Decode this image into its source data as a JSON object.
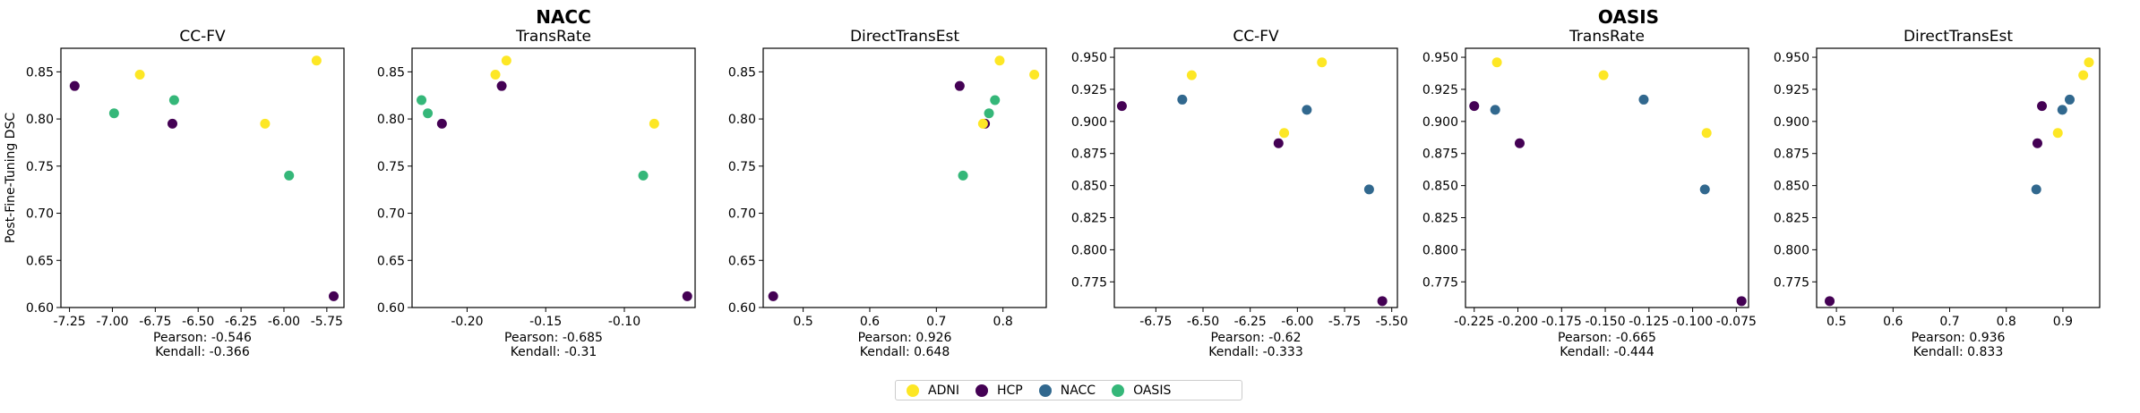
{
  "group_titles": [
    {
      "text": "NACC"
    },
    {
      "text": "OASIS"
    }
  ],
  "colors": {
    "ADNI": "#fde725",
    "HCP": "#440154",
    "NACC": "#31688e",
    "OASIS": "#35b779"
  },
  "legend": {
    "placement": "bottom-center",
    "items": [
      {
        "label": "ADNI",
        "color": "#fde725"
      },
      {
        "label": "HCP",
        "color": "#440154"
      },
      {
        "label": "NACC",
        "color": "#31688e"
      },
      {
        "label": "OASIS",
        "color": "#35b779"
      }
    ]
  },
  "chart_data": [
    {
      "type": "scatter",
      "title": "CC-FV",
      "ylabel": "Post-Fine-Tuning DSC",
      "xlim": [
        -7.3,
        -5.65
      ],
      "ylim": [
        0.6,
        0.875
      ],
      "grid": false,
      "xticks": [
        -7.25,
        -7.0,
        -6.75,
        -6.5,
        -6.25,
        -6.0,
        -5.75
      ],
      "xtick_labels": [
        "-7.25",
        "-7.00",
        "-6.75",
        "-6.50",
        "-6.25",
        "-6.00",
        "-5.75"
      ],
      "yticks": [
        0.6,
        0.65,
        0.7,
        0.75,
        0.8,
        0.85
      ],
      "ytick_labels": [
        "0.60",
        "0.65",
        "0.70",
        "0.75",
        "0.80",
        "0.85"
      ],
      "points": [
        {
          "series": "HCP",
          "x": -7.22,
          "y": 0.835
        },
        {
          "series": "ADNI",
          "x": -6.84,
          "y": 0.847
        },
        {
          "series": "OASIS",
          "x": -6.99,
          "y": 0.806
        },
        {
          "series": "OASIS",
          "x": -6.64,
          "y": 0.82
        },
        {
          "series": "HCP",
          "x": -6.65,
          "y": 0.795
        },
        {
          "series": "ADNI",
          "x": -6.11,
          "y": 0.795
        },
        {
          "series": "OASIS",
          "x": -5.97,
          "y": 0.74
        },
        {
          "series": "ADNI",
          "x": -5.81,
          "y": 0.862
        },
        {
          "series": "HCP",
          "x": -5.71,
          "y": 0.612
        }
      ],
      "annotations": [
        "Pearson: -0.546",
        "Kendall: -0.366"
      ]
    },
    {
      "type": "scatter",
      "title": "TransRate",
      "xlim": [
        -0.235,
        -0.055
      ],
      "ylim": [
        0.6,
        0.875
      ],
      "grid": false,
      "xticks": [
        -0.2,
        -0.15,
        -0.1
      ],
      "xtick_labels": [
        "-0.20",
        "-0.15",
        "-0.10"
      ],
      "yticks": [
        0.6,
        0.65,
        0.7,
        0.75,
        0.8,
        0.85
      ],
      "ytick_labels": [
        "0.60",
        "0.65",
        "0.70",
        "0.75",
        "0.80",
        "0.85"
      ],
      "points": [
        {
          "series": "OASIS",
          "x": -0.229,
          "y": 0.82
        },
        {
          "series": "OASIS",
          "x": -0.225,
          "y": 0.806
        },
        {
          "series": "HCP",
          "x": -0.216,
          "y": 0.795
        },
        {
          "series": "ADNI",
          "x": -0.182,
          "y": 0.847
        },
        {
          "series": "HCP",
          "x": -0.178,
          "y": 0.835
        },
        {
          "series": "ADNI",
          "x": -0.175,
          "y": 0.862
        },
        {
          "series": "OASIS",
          "x": -0.088,
          "y": 0.74
        },
        {
          "series": "ADNI",
          "x": -0.081,
          "y": 0.795
        },
        {
          "series": "HCP",
          "x": -0.06,
          "y": 0.612
        }
      ],
      "annotations": [
        "Pearson: -0.685",
        "Kendall: -0.31"
      ]
    },
    {
      "type": "scatter",
      "title": "DirectTransEst",
      "xlim": [
        0.44,
        0.865
      ],
      "ylim": [
        0.6,
        0.875
      ],
      "grid": false,
      "xticks": [
        0.5,
        0.6,
        0.7,
        0.8
      ],
      "xtick_labels": [
        "0.5",
        "0.6",
        "0.7",
        "0.8"
      ],
      "yticks": [
        0.6,
        0.65,
        0.7,
        0.75,
        0.8,
        0.85
      ],
      "ytick_labels": [
        "0.60",
        "0.65",
        "0.70",
        "0.75",
        "0.80",
        "0.85"
      ],
      "points": [
        {
          "series": "HCP",
          "x": 0.455,
          "y": 0.612
        },
        {
          "series": "OASIS",
          "x": 0.74,
          "y": 0.74
        },
        {
          "series": "HCP",
          "x": 0.735,
          "y": 0.835
        },
        {
          "series": "HCP",
          "x": 0.773,
          "y": 0.795
        },
        {
          "series": "ADNI",
          "x": 0.77,
          "y": 0.795
        },
        {
          "series": "OASIS",
          "x": 0.779,
          "y": 0.806
        },
        {
          "series": "OASIS",
          "x": 0.788,
          "y": 0.82
        },
        {
          "series": "ADNI",
          "x": 0.795,
          "y": 0.862
        },
        {
          "series": "ADNI",
          "x": 0.847,
          "y": 0.847
        }
      ],
      "annotations": [
        "Pearson: 0.926",
        "Kendall: 0.648"
      ]
    },
    {
      "type": "scatter",
      "title": "CC-FV",
      "xlim": [
        -6.97,
        -5.47
      ],
      "ylim": [
        0.755,
        0.957
      ],
      "grid": false,
      "xticks": [
        -6.75,
        -6.5,
        -6.25,
        -6.0,
        -5.75,
        -5.5
      ],
      "xtick_labels": [
        "-6.75",
        "-6.50",
        "-6.25",
        "-6.00",
        "-5.75",
        "-5.50"
      ],
      "yticks": [
        0.775,
        0.8,
        0.825,
        0.85,
        0.875,
        0.9,
        0.925,
        0.95
      ],
      "ytick_labels": [
        "0.775",
        "0.800",
        "0.825",
        "0.850",
        "0.875",
        "0.900",
        "0.925",
        "0.950"
      ],
      "points": [
        {
          "series": "HCP",
          "x": -6.93,
          "y": 0.912
        },
        {
          "series": "NACC",
          "x": -6.61,
          "y": 0.917
        },
        {
          "series": "ADNI",
          "x": -6.56,
          "y": 0.936
        },
        {
          "series": "HCP",
          "x": -6.1,
          "y": 0.883
        },
        {
          "series": "ADNI",
          "x": -6.07,
          "y": 0.891
        },
        {
          "series": "NACC",
          "x": -5.95,
          "y": 0.909
        },
        {
          "series": "ADNI",
          "x": -5.87,
          "y": 0.946
        },
        {
          "series": "NACC",
          "x": -5.62,
          "y": 0.847
        },
        {
          "series": "HCP",
          "x": -5.55,
          "y": 0.76
        }
      ],
      "annotations": [
        "Pearson: -0.62",
        "Kendall: -0.333"
      ]
    },
    {
      "type": "scatter",
      "title": "TransRate",
      "xlim": [
        -0.23,
        -0.068
      ],
      "ylim": [
        0.755,
        0.957
      ],
      "grid": false,
      "xticks": [
        -0.225,
        -0.2,
        -0.175,
        -0.15,
        -0.125,
        -0.1,
        -0.075
      ],
      "xtick_labels": [
        "-0.225",
        "-0.200",
        "-0.175",
        "-0.150",
        "-0.125",
        "-0.100",
        "-0.075"
      ],
      "yticks": [
        0.775,
        0.8,
        0.825,
        0.85,
        0.875,
        0.9,
        0.925,
        0.95
      ],
      "ytick_labels": [
        "0.775",
        "0.800",
        "0.825",
        "0.850",
        "0.875",
        "0.900",
        "0.925",
        "0.950"
      ],
      "points": [
        {
          "series": "HCP",
          "x": -0.225,
          "y": 0.912
        },
        {
          "series": "NACC",
          "x": -0.213,
          "y": 0.909
        },
        {
          "series": "ADNI",
          "x": -0.212,
          "y": 0.946
        },
        {
          "series": "HCP",
          "x": -0.199,
          "y": 0.883
        },
        {
          "series": "ADNI",
          "x": -0.151,
          "y": 0.936
        },
        {
          "series": "NACC",
          "x": -0.128,
          "y": 0.917
        },
        {
          "series": "ADNI",
          "x": -0.092,
          "y": 0.891
        },
        {
          "series": "NACC",
          "x": -0.093,
          "y": 0.847
        },
        {
          "series": "HCP",
          "x": -0.072,
          "y": 0.76
        }
      ],
      "annotations": [
        "Pearson: -0.665",
        "Kendall: -0.444"
      ]
    },
    {
      "type": "scatter",
      "title": "DirectTransEst",
      "xlim": [
        0.465,
        0.965
      ],
      "ylim": [
        0.755,
        0.957
      ],
      "grid": false,
      "xticks": [
        0.5,
        0.6,
        0.7,
        0.8,
        0.9
      ],
      "xtick_labels": [
        "0.5",
        "0.6",
        "0.7",
        "0.8",
        "0.9"
      ],
      "yticks": [
        0.775,
        0.8,
        0.825,
        0.85,
        0.875,
        0.9,
        0.925,
        0.95
      ],
      "ytick_labels": [
        "0.775",
        "0.800",
        "0.825",
        "0.850",
        "0.875",
        "0.900",
        "0.925",
        "0.950"
      ],
      "points": [
        {
          "series": "HCP",
          "x": 0.488,
          "y": 0.76
        },
        {
          "series": "NACC",
          "x": 0.853,
          "y": 0.847
        },
        {
          "series": "HCP",
          "x": 0.855,
          "y": 0.883
        },
        {
          "series": "HCP",
          "x": 0.863,
          "y": 0.912
        },
        {
          "series": "ADNI",
          "x": 0.891,
          "y": 0.891
        },
        {
          "series": "NACC",
          "x": 0.899,
          "y": 0.909
        },
        {
          "series": "NACC",
          "x": 0.912,
          "y": 0.917
        },
        {
          "series": "ADNI",
          "x": 0.936,
          "y": 0.936
        },
        {
          "series": "ADNI",
          "x": 0.946,
          "y": 0.946
        }
      ],
      "annotations": [
        "Pearson: 0.936",
        "Kendall: 0.833"
      ]
    }
  ]
}
